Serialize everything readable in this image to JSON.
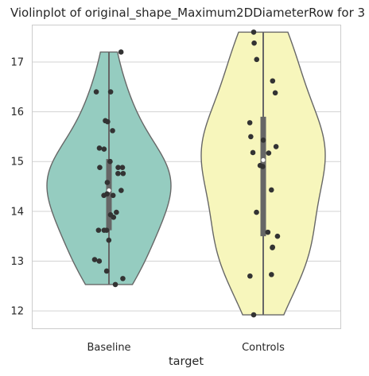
{
  "chart_data": {
    "type": "violin",
    "title": "Violinplot of original_shape_Maximum2DDiameterRow for 3",
    "xlabel": "target",
    "ylabel": "",
    "ylim": [
      11.65,
      17.75
    ],
    "yticks": [
      12,
      13,
      14,
      15,
      16,
      17
    ],
    "grid": true,
    "categories": [
      "Baseline",
      "Controls"
    ],
    "groups": [
      {
        "name": "Baseline",
        "color": "#95ccc0",
        "box": {
          "whisker_low": 12.52,
          "q1": 13.62,
          "median": 14.42,
          "q3": 15.05,
          "whisker_high": 17.2
        },
        "points": [
          17.2,
          16.4,
          16.4,
          15.82,
          15.8,
          15.62,
          15.27,
          15.25,
          15.0,
          14.88,
          14.88,
          14.88,
          14.76,
          14.76,
          14.58,
          14.42,
          14.35,
          14.32,
          14.32,
          13.98,
          13.93,
          13.88,
          13.62,
          13.62,
          13.62,
          13.42,
          13.03,
          13.0,
          12.8,
          12.65,
          12.53
        ]
      },
      {
        "name": "Controls",
        "color": "#f7f6bc",
        "box": {
          "whisker_low": 11.92,
          "q1": 13.5,
          "median": 15.03,
          "q3": 15.9,
          "whisker_high": 17.6
        },
        "points": [
          17.6,
          17.38,
          17.05,
          16.62,
          16.38,
          15.78,
          15.5,
          15.43,
          15.3,
          15.18,
          15.17,
          14.92,
          14.9,
          14.43,
          13.98,
          13.58,
          13.5,
          13.28,
          13.27,
          12.73,
          12.7,
          11.92
        ]
      }
    ]
  }
}
